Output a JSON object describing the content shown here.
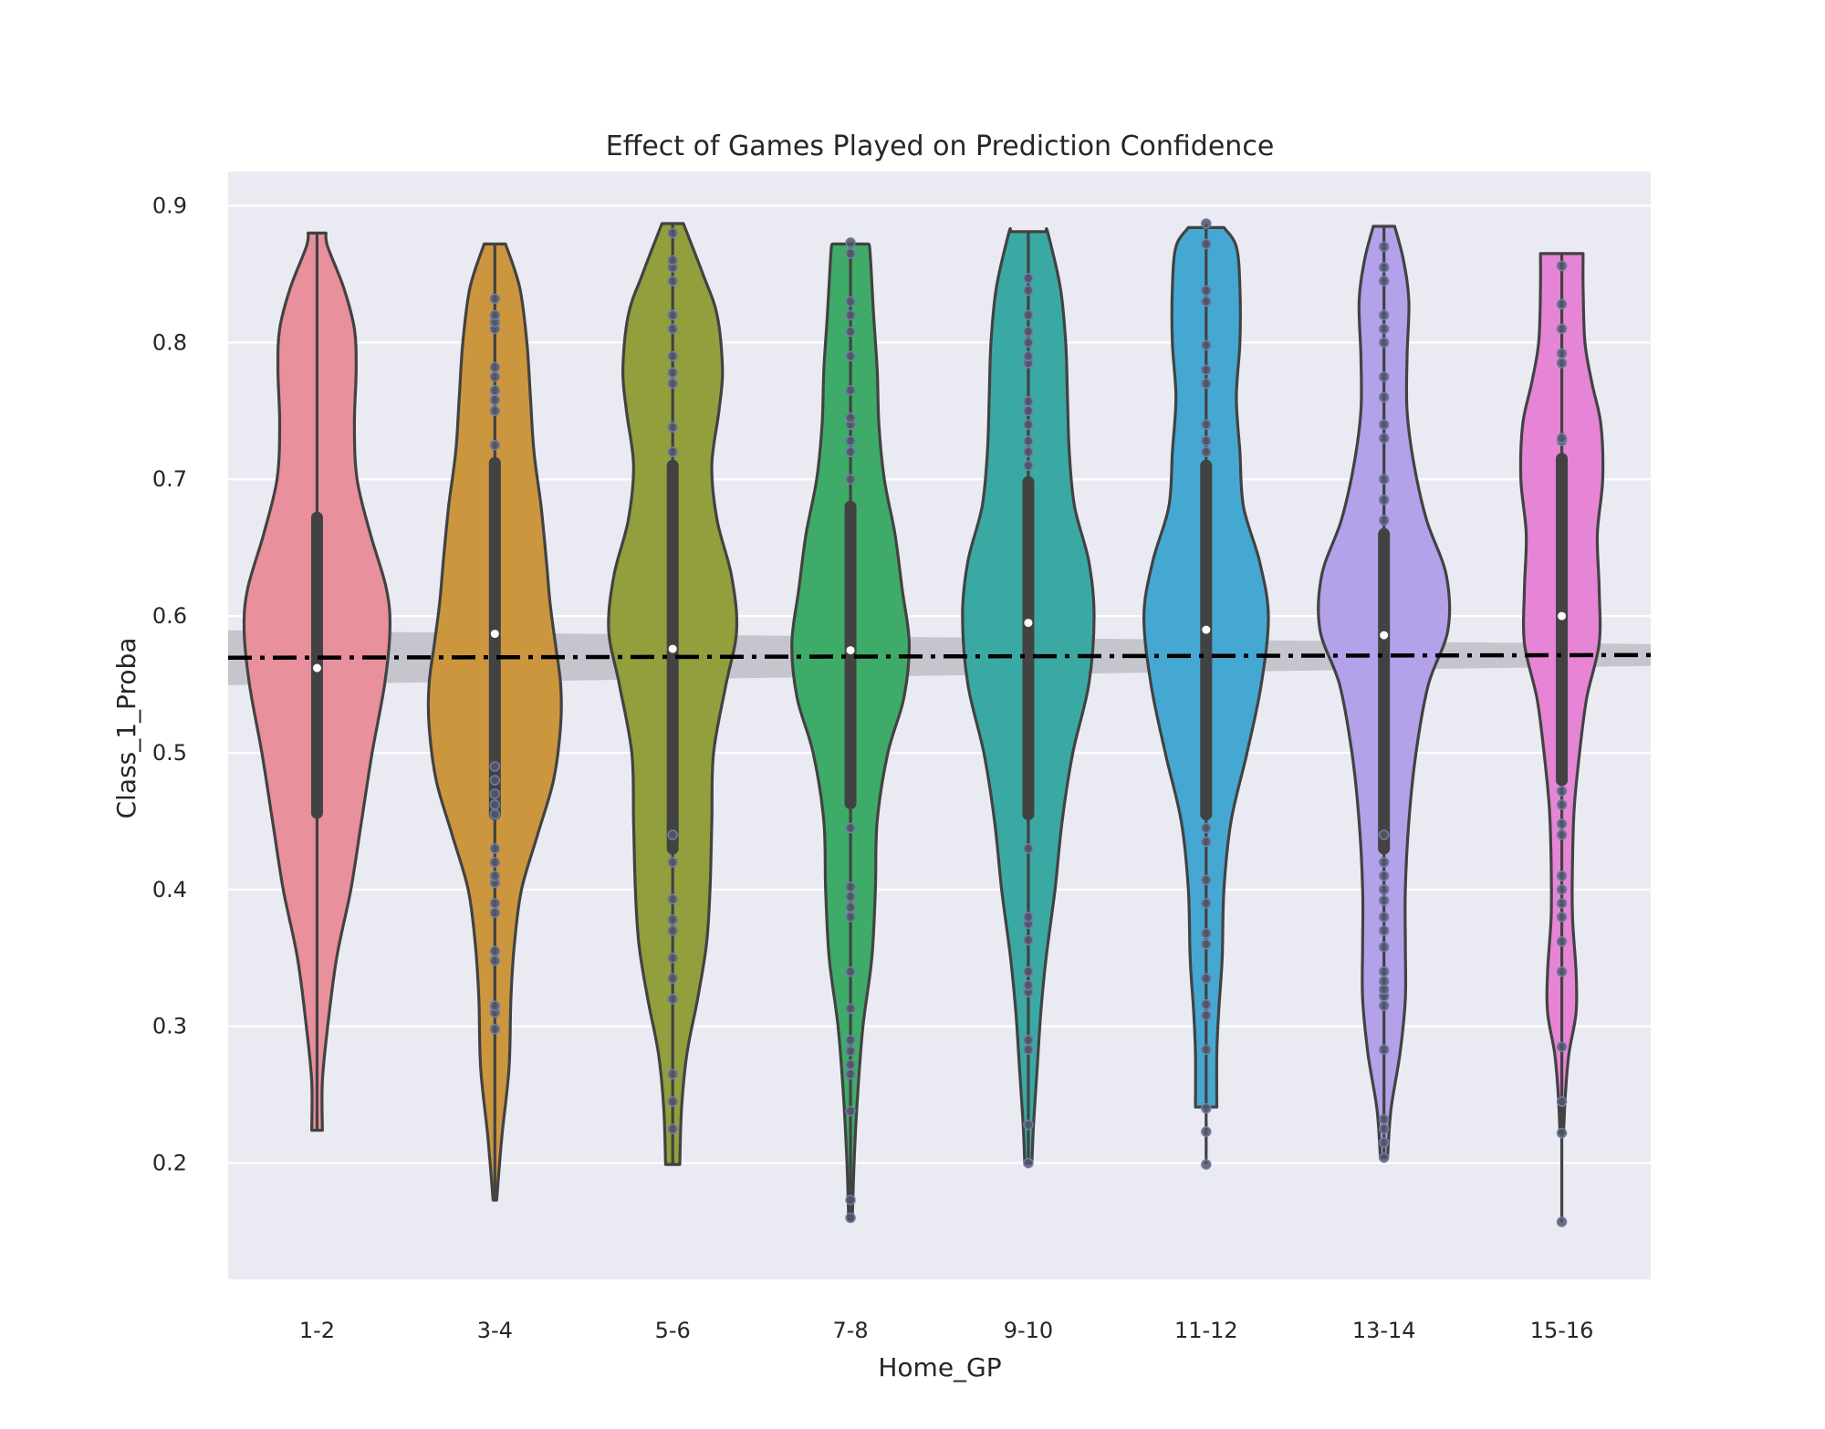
{
  "chart_data": {
    "type": "violin",
    "title": "Effect of Games Played on Prediction Confidence",
    "xlabel": "Home_GP",
    "ylabel": "Class_1_Proba",
    "ylim": [
      0.115,
      0.925
    ],
    "yticks": [
      "0.2",
      "0.3",
      "0.4",
      "0.5",
      "0.6",
      "0.7",
      "0.8",
      "0.9"
    ],
    "grid": true,
    "background": "#eaeaf2",
    "categories": [
      "1-2",
      "3-4",
      "5-6",
      "7-8",
      "9-10",
      "11-12",
      "13-14",
      "15-16"
    ],
    "colors": [
      "#e8909c",
      "#cc963f",
      "#939e3d",
      "#3fab68",
      "#3ba9a3",
      "#45a8d2",
      "#b3a1ea",
      "#e685d6"
    ],
    "violins": [
      {
        "min": 0.224,
        "max": 0.88,
        "q1": 0.456,
        "median": 0.562,
        "q3": 0.672,
        "density": [
          [
            0.224,
            0.06
          ],
          [
            0.26,
            0.06
          ],
          [
            0.3,
            0.12
          ],
          [
            0.35,
            0.22
          ],
          [
            0.4,
            0.38
          ],
          [
            0.45,
            0.5
          ],
          [
            0.5,
            0.62
          ],
          [
            0.55,
            0.76
          ],
          [
            0.59,
            0.82
          ],
          [
            0.62,
            0.78
          ],
          [
            0.66,
            0.6
          ],
          [
            0.7,
            0.45
          ],
          [
            0.74,
            0.42
          ],
          [
            0.78,
            0.44
          ],
          [
            0.81,
            0.42
          ],
          [
            0.84,
            0.3
          ],
          [
            0.87,
            0.12
          ],
          [
            0.88,
            0.1
          ]
        ],
        "points": []
      },
      {
        "min": 0.173,
        "max": 0.872,
        "q1": 0.455,
        "median": 0.587,
        "q3": 0.712,
        "density": [
          [
            0.173,
            0.02
          ],
          [
            0.22,
            0.08
          ],
          [
            0.27,
            0.16
          ],
          [
            0.32,
            0.18
          ],
          [
            0.36,
            0.22
          ],
          [
            0.4,
            0.3
          ],
          [
            0.44,
            0.48
          ],
          [
            0.48,
            0.66
          ],
          [
            0.52,
            0.74
          ],
          [
            0.55,
            0.74
          ],
          [
            0.58,
            0.68
          ],
          [
            0.61,
            0.62
          ],
          [
            0.64,
            0.58
          ],
          [
            0.68,
            0.52
          ],
          [
            0.72,
            0.44
          ],
          [
            0.76,
            0.4
          ],
          [
            0.8,
            0.36
          ],
          [
            0.84,
            0.28
          ],
          [
            0.872,
            0.12
          ]
        ],
        "points": [
          0.298,
          0.31,
          0.315,
          0.348,
          0.355,
          0.383,
          0.39,
          0.405,
          0.41,
          0.42,
          0.43,
          0.455,
          0.462,
          0.47,
          0.48,
          0.49,
          0.725,
          0.75,
          0.758,
          0.765,
          0.775,
          0.782,
          0.81,
          0.815,
          0.82,
          0.832
        ]
      },
      {
        "min": 0.199,
        "max": 0.887,
        "q1": 0.43,
        "median": 0.576,
        "q3": 0.71,
        "density": [
          [
            0.199,
            0.08
          ],
          [
            0.24,
            0.1
          ],
          [
            0.28,
            0.16
          ],
          [
            0.32,
            0.28
          ],
          [
            0.36,
            0.38
          ],
          [
            0.4,
            0.42
          ],
          [
            0.45,
            0.44
          ],
          [
            0.5,
            0.46
          ],
          [
            0.55,
            0.6
          ],
          [
            0.59,
            0.72
          ],
          [
            0.63,
            0.66
          ],
          [
            0.67,
            0.5
          ],
          [
            0.71,
            0.44
          ],
          [
            0.75,
            0.52
          ],
          [
            0.78,
            0.56
          ],
          [
            0.82,
            0.5
          ],
          [
            0.85,
            0.34
          ],
          [
            0.887,
            0.12
          ]
        ],
        "points": [
          0.225,
          0.245,
          0.265,
          0.32,
          0.335,
          0.35,
          0.37,
          0.378,
          0.393,
          0.42,
          0.44,
          0.72,
          0.738,
          0.77,
          0.778,
          0.79,
          0.81,
          0.82,
          0.845,
          0.855,
          0.86,
          0.88
        ]
      },
      {
        "min": 0.158,
        "max": 0.872,
        "q1": 0.463,
        "median": 0.575,
        "q3": 0.68,
        "density": [
          [
            0.158,
            0.02
          ],
          [
            0.2,
            0.04
          ],
          [
            0.25,
            0.08
          ],
          [
            0.3,
            0.14
          ],
          [
            0.35,
            0.24
          ],
          [
            0.4,
            0.28
          ],
          [
            0.45,
            0.3
          ],
          [
            0.5,
            0.42
          ],
          [
            0.54,
            0.6
          ],
          [
            0.58,
            0.66
          ],
          [
            0.62,
            0.58
          ],
          [
            0.66,
            0.5
          ],
          [
            0.7,
            0.38
          ],
          [
            0.74,
            0.32
          ],
          [
            0.78,
            0.3
          ],
          [
            0.82,
            0.26
          ],
          [
            0.866,
            0.22
          ],
          [
            0.872,
            0.2
          ]
        ],
        "points": [
          0.16,
          0.173,
          0.238,
          0.265,
          0.272,
          0.282,
          0.29,
          0.313,
          0.34,
          0.38,
          0.387,
          0.395,
          0.402,
          0.445,
          0.7,
          0.72,
          0.728,
          0.74,
          0.745,
          0.765,
          0.79,
          0.808,
          0.82,
          0.83,
          0.865,
          0.873
        ]
      },
      {
        "min": 0.2,
        "max": 0.881,
        "q1": 0.455,
        "median": 0.595,
        "q3": 0.698,
        "density": [
          [
            0.2,
            0.04
          ],
          [
            0.23,
            0.06
          ],
          [
            0.27,
            0.1
          ],
          [
            0.31,
            0.14
          ],
          [
            0.35,
            0.2
          ],
          [
            0.4,
            0.3
          ],
          [
            0.45,
            0.38
          ],
          [
            0.5,
            0.5
          ],
          [
            0.55,
            0.68
          ],
          [
            0.6,
            0.74
          ],
          [
            0.64,
            0.68
          ],
          [
            0.68,
            0.52
          ],
          [
            0.72,
            0.46
          ],
          [
            0.76,
            0.44
          ],
          [
            0.8,
            0.42
          ],
          [
            0.84,
            0.36
          ],
          [
            0.88,
            0.22
          ],
          [
            0.881,
            0.2
          ]
        ],
        "points": [
          0.2,
          0.228,
          0.283,
          0.29,
          0.325,
          0.33,
          0.34,
          0.363,
          0.375,
          0.38,
          0.43,
          0.71,
          0.72,
          0.728,
          0.74,
          0.75,
          0.757,
          0.785,
          0.79,
          0.8,
          0.808,
          0.82,
          0.838,
          0.847
        ]
      },
      {
        "min": 0.199,
        "max": 0.887,
        "q1": 0.455,
        "median": 0.59,
        "q3": 0.71,
        "density": [
          [
            0.241,
            0.12
          ],
          [
            0.28,
            0.12
          ],
          [
            0.31,
            0.14
          ],
          [
            0.35,
            0.18
          ],
          [
            0.4,
            0.2
          ],
          [
            0.45,
            0.28
          ],
          [
            0.5,
            0.46
          ],
          [
            0.55,
            0.62
          ],
          [
            0.6,
            0.7
          ],
          [
            0.64,
            0.6
          ],
          [
            0.68,
            0.42
          ],
          [
            0.72,
            0.38
          ],
          [
            0.76,
            0.34
          ],
          [
            0.8,
            0.38
          ],
          [
            0.84,
            0.38
          ],
          [
            0.87,
            0.34
          ],
          [
            0.884,
            0.2
          ]
        ],
        "points": [
          0.199,
          0.223,
          0.24,
          0.283,
          0.308,
          0.316,
          0.335,
          0.36,
          0.368,
          0.39,
          0.407,
          0.435,
          0.445,
          0.72,
          0.728,
          0.74,
          0.77,
          0.78,
          0.798,
          0.83,
          0.838,
          0.872,
          0.887
        ]
      },
      {
        "min": 0.204,
        "max": 0.885,
        "q1": 0.43,
        "median": 0.586,
        "q3": 0.66,
        "density": [
          [
            0.204,
            0.04
          ],
          [
            0.24,
            0.08
          ],
          [
            0.28,
            0.18
          ],
          [
            0.32,
            0.24
          ],
          [
            0.36,
            0.24
          ],
          [
            0.4,
            0.24
          ],
          [
            0.45,
            0.28
          ],
          [
            0.5,
            0.36
          ],
          [
            0.55,
            0.5
          ],
          [
            0.59,
            0.72
          ],
          [
            0.63,
            0.7
          ],
          [
            0.67,
            0.48
          ],
          [
            0.71,
            0.34
          ],
          [
            0.75,
            0.26
          ],
          [
            0.79,
            0.26
          ],
          [
            0.83,
            0.28
          ],
          [
            0.86,
            0.22
          ],
          [
            0.885,
            0.12
          ]
        ],
        "points": [
          0.204,
          0.215,
          0.225,
          0.232,
          0.283,
          0.315,
          0.322,
          0.327,
          0.333,
          0.34,
          0.358,
          0.37,
          0.38,
          0.392,
          0.4,
          0.41,
          0.42,
          0.44,
          0.67,
          0.685,
          0.7,
          0.73,
          0.74,
          0.76,
          0.775,
          0.8,
          0.81,
          0.82,
          0.845,
          0.855,
          0.87
        ]
      },
      {
        "min": 0.157,
        "max": 0.865,
        "q1": 0.48,
        "median": 0.6,
        "q3": 0.715,
        "density": [
          [
            0.222,
            0.02
          ],
          [
            0.25,
            0.04
          ],
          [
            0.28,
            0.08
          ],
          [
            0.31,
            0.16
          ],
          [
            0.34,
            0.16
          ],
          [
            0.38,
            0.12
          ],
          [
            0.42,
            0.12
          ],
          [
            0.46,
            0.14
          ],
          [
            0.5,
            0.2
          ],
          [
            0.54,
            0.28
          ],
          [
            0.58,
            0.42
          ],
          [
            0.62,
            0.42
          ],
          [
            0.66,
            0.4
          ],
          [
            0.7,
            0.46
          ],
          [
            0.74,
            0.44
          ],
          [
            0.77,
            0.34
          ],
          [
            0.8,
            0.26
          ],
          [
            0.84,
            0.24
          ],
          [
            0.865,
            0.24
          ]
        ],
        "points": [
          0.157,
          0.222,
          0.245,
          0.285,
          0.34,
          0.362,
          0.38,
          0.39,
          0.4,
          0.41,
          0.44,
          0.448,
          0.462,
          0.472,
          0.728,
          0.73,
          0.785,
          0.792,
          0.81,
          0.828,
          0.856
        ]
      }
    ],
    "regression": {
      "x": [
        0.5,
        8.5
      ],
      "y": [
        0.5695,
        0.5715
      ],
      "ci": [
        0.02,
        0.008
      ]
    }
  }
}
